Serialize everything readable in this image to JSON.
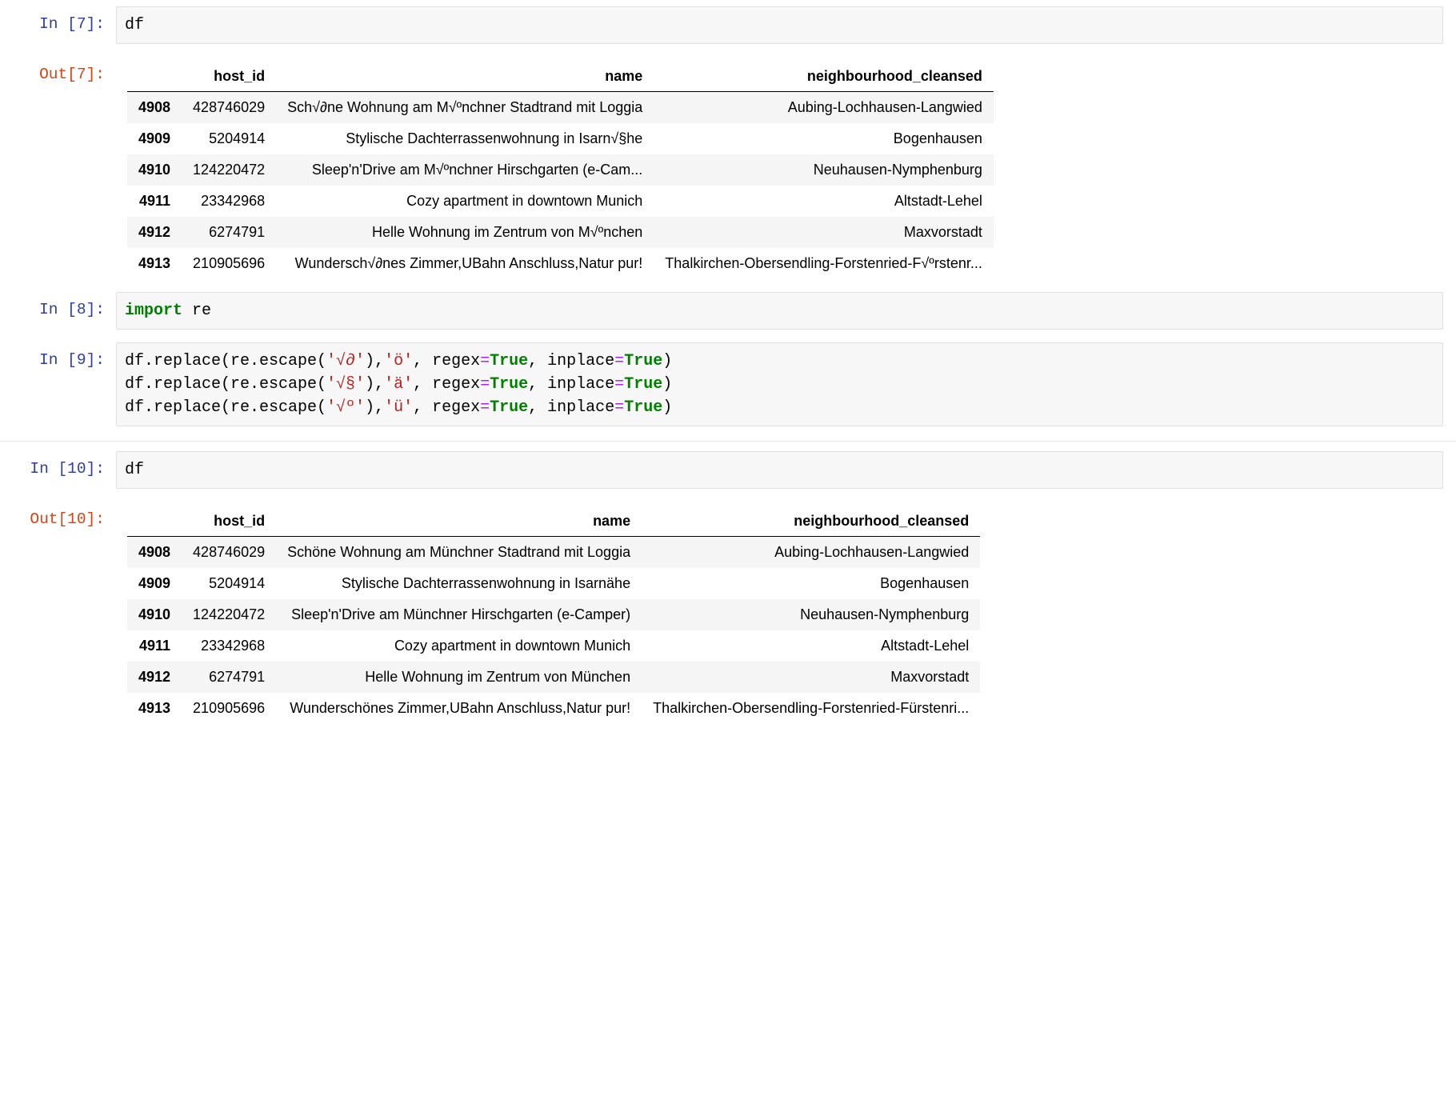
{
  "colors": {
    "prompt_in": "#303f9f",
    "prompt_out": "#d84315",
    "kw": "#008000",
    "str": "#ba2121",
    "op": "#aa22ff",
    "code_bg": "#f7f7f7",
    "code_border": "#e0e0e0",
    "row_stripe": "#f5f5f5",
    "th_border": "#000000"
  },
  "cells": [
    {
      "type": "code",
      "in_prompt": "In [7]:",
      "out_prompt": "Out[7]:",
      "code_lines": [
        [
          {
            "t": "df",
            "c": null
          }
        ]
      ],
      "output_table": {
        "columns": [
          "host_id",
          "name",
          "neighbourhood_cleansed"
        ],
        "index": [
          "4908",
          "4909",
          "4910",
          "4911",
          "4912",
          "4913"
        ],
        "rows": [
          [
            "428746029",
            "Sch√∂ne Wohnung am M√ºnchner Stadtrand mit Loggia",
            "Aubing-Lochhausen-Langwied"
          ],
          [
            "5204914",
            "Stylische Dachterrassenwohnung in Isarn√§he",
            "Bogenhausen"
          ],
          [
            "124220472",
            "Sleep'n'Drive am M√ºnchner Hirschgarten (e-Cam...",
            "Neuhausen-Nymphenburg"
          ],
          [
            "23342968",
            "Cozy apartment in downtown Munich",
            "Altstadt-Lehel"
          ],
          [
            "6274791",
            "Helle Wohnung im Zentrum von M√ºnchen",
            "Maxvorstadt"
          ],
          [
            "210905696",
            "Wundersch√∂nes Zimmer,UBahn Anschluss,Natur pur!",
            "Thalkirchen-Obersendling-Forstenried-F√ºrstenr..."
          ]
        ]
      }
    },
    {
      "type": "code",
      "in_prompt": "In [8]:",
      "out_prompt": null,
      "code_lines": [
        [
          {
            "t": "import",
            "c": "kw"
          },
          {
            "t": " re",
            "c": null
          }
        ]
      ],
      "output_table": null
    },
    {
      "type": "code",
      "in_prompt": "In [9]:",
      "out_prompt": null,
      "code_lines": [
        [
          {
            "t": "df.replace(re.escape(",
            "c": null
          },
          {
            "t": "'√∂'",
            "c": "str"
          },
          {
            "t": "),",
            "c": null
          },
          {
            "t": "'ö'",
            "c": "str"
          },
          {
            "t": ", regex",
            "c": null
          },
          {
            "t": "=",
            "c": "op"
          },
          {
            "t": "True",
            "c": "bool"
          },
          {
            "t": ", inplace",
            "c": null
          },
          {
            "t": "=",
            "c": "op"
          },
          {
            "t": "True",
            "c": "bool"
          },
          {
            "t": ")",
            "c": null
          }
        ],
        [
          {
            "t": "df.replace(re.escape(",
            "c": null
          },
          {
            "t": "'√§'",
            "c": "str"
          },
          {
            "t": "),",
            "c": null
          },
          {
            "t": "'ä'",
            "c": "str"
          },
          {
            "t": ", regex",
            "c": null
          },
          {
            "t": "=",
            "c": "op"
          },
          {
            "t": "True",
            "c": "bool"
          },
          {
            "t": ", inplace",
            "c": null
          },
          {
            "t": "=",
            "c": "op"
          },
          {
            "t": "True",
            "c": "bool"
          },
          {
            "t": ")",
            "c": null
          }
        ],
        [
          {
            "t": "df.replace(re.escape(",
            "c": null
          },
          {
            "t": "'√º'",
            "c": "str"
          },
          {
            "t": "),",
            "c": null
          },
          {
            "t": "'ü'",
            "c": "str"
          },
          {
            "t": ", regex",
            "c": null
          },
          {
            "t": "=",
            "c": "op"
          },
          {
            "t": "True",
            "c": "bool"
          },
          {
            "t": ", inplace",
            "c": null
          },
          {
            "t": "=",
            "c": "op"
          },
          {
            "t": "True",
            "c": "bool"
          },
          {
            "t": ")",
            "c": null
          }
        ]
      ],
      "output_table": null,
      "separator_after": true
    },
    {
      "type": "code",
      "in_prompt": "In [10]:",
      "out_prompt": "Out[10]:",
      "code_lines": [
        [
          {
            "t": "df",
            "c": null
          }
        ]
      ],
      "output_table": {
        "columns": [
          "host_id",
          "name",
          "neighbourhood_cleansed"
        ],
        "index": [
          "4908",
          "4909",
          "4910",
          "4911",
          "4912",
          "4913"
        ],
        "rows": [
          [
            "428746029",
            "Schöne Wohnung am Münchner Stadtrand mit Loggia",
            "Aubing-Lochhausen-Langwied"
          ],
          [
            "5204914",
            "Stylische Dachterrassenwohnung in Isarnähe",
            "Bogenhausen"
          ],
          [
            "124220472",
            "Sleep'n'Drive am Münchner Hirschgarten (e-Camper)",
            "Neuhausen-Nymphenburg"
          ],
          [
            "23342968",
            "Cozy apartment in downtown Munich",
            "Altstadt-Lehel"
          ],
          [
            "6274791",
            "Helle Wohnung im Zentrum von München",
            "Maxvorstadt"
          ],
          [
            "210905696",
            "Wunderschönes Zimmer,UBahn Anschluss,Natur pur!",
            "Thalkirchen-Obersendling-Forstenried-Fürstenri..."
          ]
        ]
      }
    }
  ]
}
